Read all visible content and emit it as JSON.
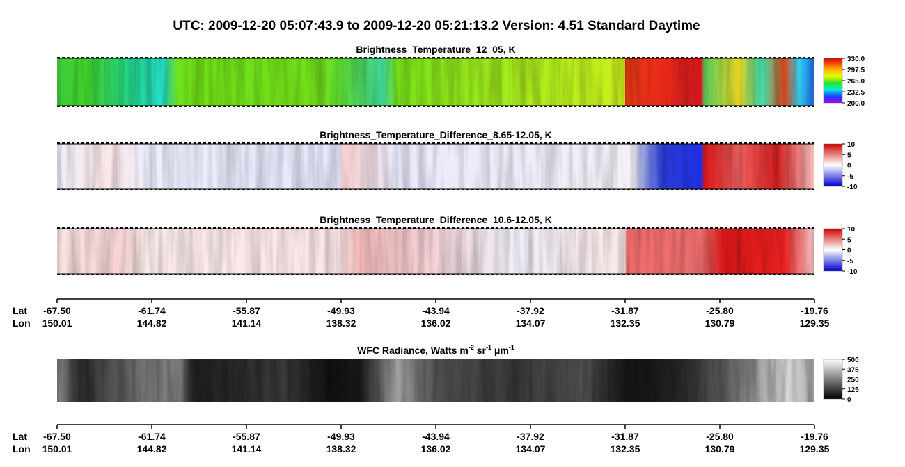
{
  "title": "UTC:  2009-12-20   05:07:43.9  to  2009-12-20   05:21:13.2    Version: 4.51  Standard Daytime",
  "panels": [
    {
      "title": "Brightness_Temperature_12_05, K",
      "colorbar_ticks": [
        "330.0",
        "297.5",
        "265.0",
        "232.5",
        "200.0"
      ]
    },
    {
      "title": "Brightness_Temperature_Difference_8.65-12.05, K",
      "colorbar_ticks": [
        "10",
        "5",
        "0",
        "-5",
        "-10"
      ]
    },
    {
      "title": "Brightness_Temperature_Difference_10.6-12.05, K",
      "colorbar_ticks": [
        "10",
        "5",
        "0",
        "-5",
        "-10"
      ]
    },
    {
      "title_parts": [
        "WFC Radiance, Watts m",
        "-2",
        " sr",
        "-1",
        " μm",
        "-1"
      ],
      "colorbar_ticks": [
        "500",
        "375",
        "250",
        "125",
        "0"
      ]
    }
  ],
  "axis": {
    "lat_label": "Lat",
    "lon_label": "Lon",
    "lat": [
      "-67.50",
      "-61.74",
      "-55.87",
      "-49.93",
      "-43.94",
      "-37.92",
      "-31.87",
      "-25.80",
      "-19.76"
    ],
    "lon": [
      "150.01",
      "144.82",
      "141.14",
      "138.32",
      "136.02",
      "134.07",
      "132.35",
      "130.79",
      "129.35"
    ]
  }
}
